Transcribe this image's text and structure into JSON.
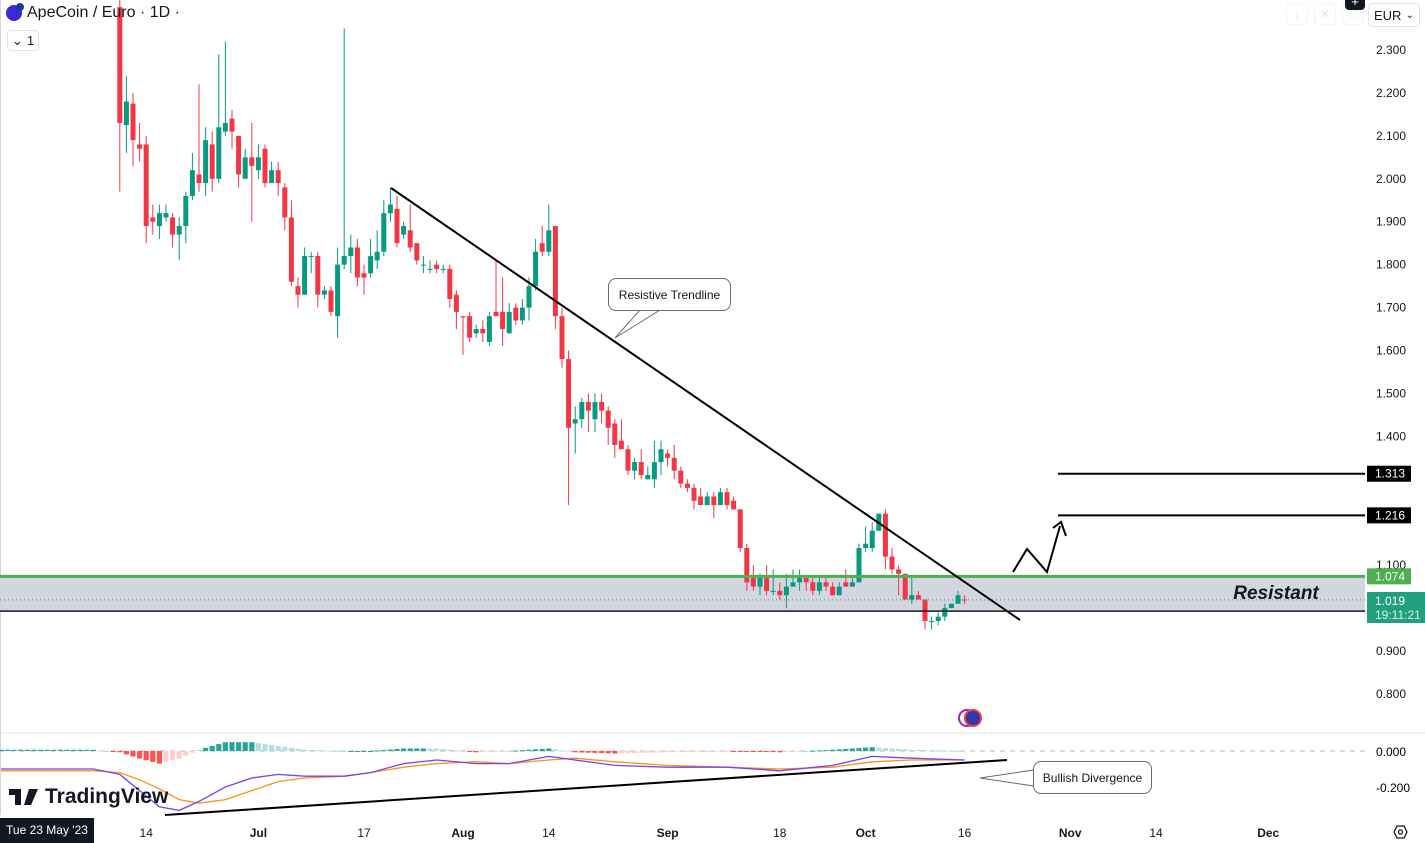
{
  "header": {
    "symbol_title": "ApeCoin / Euro · 1D ·",
    "collapse_label": "1",
    "currency": "EUR"
  },
  "crosshair_date": "Tue 23 May '23",
  "brand": "TradingView",
  "colors": {
    "up": "#089981",
    "down": "#f23645",
    "macd": "#7b3ff2",
    "signal": "#f7931a",
    "resistance": "#4caf50",
    "zone": "#d1d4dc",
    "last_price": "#22a07e"
  },
  "annotations": {
    "trendline_label": "Resistive Trendline",
    "divergence_label": "Bullish Divergence",
    "zone_label": "Resistant",
    "level_1": "1.313",
    "level_2": "1.216",
    "resistance_level": "1.074",
    "last_price": "1.019",
    "countdown": "19:11:21"
  },
  "chart_data": [
    {
      "type": "candlestick",
      "title": "ApeCoin / Euro · 1D",
      "ylim": [
        0.75,
        2.4
      ],
      "y_ticks": [
        "2.300",
        "2.200",
        "2.100",
        "2.000",
        "1.900",
        "1.800",
        "1.700",
        "1.600",
        "1.500",
        "1.400",
        "1.100",
        "0.900",
        "0.800"
      ],
      "x_ticks": [
        {
          "label": "14",
          "date": "2023-06-14",
          "bold": false
        },
        {
          "label": "Jul",
          "date": "2023-07-01",
          "bold": true
        },
        {
          "label": "17",
          "date": "2023-07-17",
          "bold": false
        },
        {
          "label": "Aug",
          "date": "2023-08-01",
          "bold": true
        },
        {
          "label": "14",
          "date": "2023-08-14",
          "bold": false
        },
        {
          "label": "Sep",
          "date": "2023-09-01",
          "bold": true
        },
        {
          "label": "18",
          "date": "2023-09-18",
          "bold": false
        },
        {
          "label": "Oct",
          "date": "2023-10-01",
          "bold": true
        },
        {
          "label": "16",
          "date": "2023-10-16",
          "bold": false
        },
        {
          "label": "Nov",
          "date": "2023-11-01",
          "bold": true
        },
        {
          "label": "14",
          "date": "2023-11-14",
          "bold": false
        },
        {
          "label": "Dec",
          "date": "2023-12-01",
          "bold": true
        }
      ],
      "candles_columns": [
        "date",
        "open",
        "high",
        "low",
        "close"
      ],
      "candles": [
        [
          "2023-06-10",
          2.4,
          2.45,
          1.97,
          2.13
        ],
        [
          "2023-06-11",
          2.125,
          2.24,
          2.06,
          2.18
        ],
        [
          "2023-06-12",
          2.175,
          2.2,
          2.03,
          2.09
        ],
        [
          "2023-06-13",
          2.08,
          2.13,
          2.04,
          2.07
        ],
        [
          "2023-06-14",
          2.08,
          2.1,
          1.85,
          1.89
        ],
        [
          "2023-06-15",
          1.91,
          1.94,
          1.87,
          1.9
        ],
        [
          "2023-06-16",
          1.89,
          1.94,
          1.86,
          1.92
        ],
        [
          "2023-06-17",
          1.91,
          1.94,
          1.9,
          1.92
        ],
        [
          "2023-06-18",
          1.91,
          1.92,
          1.84,
          1.87
        ],
        [
          "2023-06-19",
          1.87,
          1.91,
          1.81,
          1.89
        ],
        [
          "2023-06-20",
          1.89,
          1.97,
          1.85,
          1.96
        ],
        [
          "2023-06-21",
          1.96,
          2.06,
          1.95,
          2.02
        ],
        [
          "2023-06-22",
          2.01,
          2.22,
          1.97,
          1.99
        ],
        [
          "2023-06-23",
          1.99,
          2.12,
          1.96,
          2.09
        ],
        [
          "2023-06-24",
          2.08,
          2.11,
          1.97,
          2.0
        ],
        [
          "2023-06-25",
          2.0,
          2.29,
          1.99,
          2.12
        ],
        [
          "2023-06-26",
          2.11,
          2.32,
          2.1,
          2.13
        ],
        [
          "2023-06-27",
          2.14,
          2.16,
          2.07,
          2.11
        ],
        [
          "2023-06-28",
          2.1,
          2.1,
          1.98,
          2.01
        ],
        [
          "2023-06-29",
          2.0,
          2.07,
          2.0,
          2.05
        ],
        [
          "2023-06-30",
          2.05,
          2.13,
          1.9,
          2.03
        ],
        [
          "2023-07-01",
          2.02,
          2.08,
          2.0,
          2.05
        ],
        [
          "2023-07-02",
          2.07,
          2.08,
          1.98,
          1.99
        ],
        [
          "2023-07-03",
          1.99,
          2.04,
          1.99,
          2.02
        ],
        [
          "2023-07-04",
          2.02,
          2.04,
          1.96,
          1.99
        ],
        [
          "2023-07-05",
          1.98,
          1.99,
          1.88,
          1.91
        ],
        [
          "2023-07-06",
          1.91,
          1.95,
          1.75,
          1.76
        ],
        [
          "2023-07-07",
          1.75,
          1.77,
          1.7,
          1.73
        ],
        [
          "2023-07-08",
          1.73,
          1.84,
          1.73,
          1.82
        ],
        [
          "2023-07-09",
          1.82,
          1.83,
          1.78,
          1.82
        ],
        [
          "2023-07-10",
          1.82,
          1.83,
          1.7,
          1.73
        ],
        [
          "2023-07-11",
          1.73,
          1.75,
          1.72,
          1.74
        ],
        [
          "2023-07-12",
          1.74,
          1.75,
          1.68,
          1.69
        ],
        [
          "2023-07-13",
          1.68,
          1.84,
          1.63,
          1.8
        ],
        [
          "2023-07-14",
          1.8,
          2.35,
          1.79,
          1.82
        ],
        [
          "2023-07-15",
          1.82,
          1.87,
          1.78,
          1.84
        ],
        [
          "2023-07-16",
          1.84,
          1.86,
          1.75,
          1.77
        ],
        [
          "2023-07-17",
          1.78,
          1.8,
          1.73,
          1.77
        ],
        [
          "2023-07-18",
          1.78,
          1.86,
          1.77,
          1.82
        ],
        [
          "2023-07-19",
          1.81,
          1.88,
          1.79,
          1.83
        ],
        [
          "2023-07-20",
          1.83,
          1.95,
          1.82,
          1.92
        ],
        [
          "2023-07-21",
          1.92,
          1.98,
          1.9,
          1.94
        ],
        [
          "2023-07-22",
          1.93,
          1.96,
          1.84,
          1.85
        ],
        [
          "2023-07-23",
          1.87,
          1.9,
          1.86,
          1.89
        ],
        [
          "2023-07-24",
          1.88,
          1.94,
          1.83,
          1.84
        ],
        [
          "2023-07-25",
          1.85,
          1.85,
          1.8,
          1.81
        ],
        [
          "2023-07-26",
          1.8,
          1.82,
          1.78,
          1.8
        ],
        [
          "2023-07-27",
          1.79,
          1.81,
          1.78,
          1.79
        ],
        [
          "2023-07-28",
          1.8,
          1.81,
          1.78,
          1.79
        ],
        [
          "2023-07-29",
          1.79,
          1.8,
          1.78,
          1.79
        ],
        [
          "2023-07-30",
          1.79,
          1.8,
          1.7,
          1.72
        ],
        [
          "2023-07-31",
          1.73,
          1.74,
          1.65,
          1.69
        ],
        [
          "2023-08-01",
          1.68,
          1.68,
          1.59,
          1.677
        ],
        [
          "2023-08-02",
          1.68,
          1.69,
          1.62,
          1.63
        ],
        [
          "2023-08-03",
          1.64,
          1.66,
          1.63,
          1.65
        ],
        [
          "2023-08-04",
          1.65,
          1.67,
          1.62,
          1.64
        ],
        [
          "2023-08-05",
          1.62,
          1.69,
          1.61,
          1.68
        ],
        [
          "2023-08-06",
          1.69,
          1.81,
          1.68,
          1.68
        ],
        [
          "2023-08-07",
          1.69,
          1.77,
          1.61,
          1.65
        ],
        [
          "2023-08-08",
          1.64,
          1.71,
          1.64,
          1.69
        ],
        [
          "2023-08-09",
          1.7,
          1.71,
          1.66,
          1.67
        ],
        [
          "2023-08-10",
          1.67,
          1.72,
          1.66,
          1.7
        ],
        [
          "2023-08-11",
          1.7,
          1.77,
          1.67,
          1.75
        ],
        [
          "2023-08-12",
          1.75,
          1.86,
          1.74,
          1.83
        ],
        [
          "2023-08-13",
          1.85,
          1.89,
          1.82,
          1.83
        ],
        [
          "2023-08-14",
          1.83,
          1.94,
          1.82,
          1.88
        ],
        [
          "2023-08-15",
          1.89,
          1.89,
          1.65,
          1.68
        ],
        [
          "2023-08-16",
          1.68,
          1.7,
          1.56,
          1.58
        ],
        [
          "2023-08-17",
          1.58,
          1.6,
          1.24,
          1.42
        ],
        [
          "2023-08-18",
          1.43,
          1.47,
          1.36,
          1.44
        ],
        [
          "2023-08-19",
          1.44,
          1.49,
          1.42,
          1.48
        ],
        [
          "2023-08-20",
          1.48,
          1.5,
          1.41,
          1.46
        ],
        [
          "2023-08-21",
          1.44,
          1.5,
          1.41,
          1.48
        ],
        [
          "2023-08-22",
          1.48,
          1.5,
          1.43,
          1.46
        ],
        [
          "2023-08-23",
          1.46,
          1.47,
          1.38,
          1.42
        ],
        [
          "2023-08-24",
          1.43,
          1.44,
          1.35,
          1.38
        ],
        [
          "2023-08-25",
          1.39,
          1.44,
          1.37,
          1.37
        ],
        [
          "2023-08-26",
          1.37,
          1.38,
          1.31,
          1.32
        ],
        [
          "2023-08-27",
          1.32,
          1.35,
          1.3,
          1.34
        ],
        [
          "2023-08-28",
          1.34,
          1.37,
          1.3,
          1.31
        ],
        [
          "2023-08-29",
          1.3,
          1.33,
          1.3,
          1.31
        ],
        [
          "2023-08-30",
          1.3,
          1.39,
          1.28,
          1.34
        ],
        [
          "2023-08-31",
          1.34,
          1.39,
          1.31,
          1.37
        ],
        [
          "2023-09-01",
          1.36,
          1.37,
          1.33,
          1.35
        ],
        [
          "2023-09-02",
          1.35,
          1.38,
          1.3,
          1.32
        ],
        [
          "2023-09-03",
          1.32,
          1.33,
          1.28,
          1.29
        ],
        [
          "2023-09-04",
          1.29,
          1.3,
          1.27,
          1.28
        ],
        [
          "2023-09-05",
          1.28,
          1.29,
          1.23,
          1.25
        ],
        [
          "2023-09-06",
          1.26,
          1.28,
          1.24,
          1.24
        ],
        [
          "2023-09-07",
          1.24,
          1.27,
          1.24,
          1.26
        ],
        [
          "2023-09-08",
          1.26,
          1.27,
          1.21,
          1.24
        ],
        [
          "2023-09-09",
          1.24,
          1.28,
          1.24,
          1.27
        ],
        [
          "2023-09-10",
          1.27,
          1.28,
          1.23,
          1.24
        ],
        [
          "2023-09-11",
          1.25,
          1.26,
          1.23,
          1.23
        ],
        [
          "2023-09-12",
          1.23,
          1.23,
          1.13,
          1.14
        ],
        [
          "2023-09-13",
          1.14,
          1.15,
          1.04,
          1.06
        ],
        [
          "2023-09-14",
          1.07,
          1.1,
          1.04,
          1.05
        ],
        [
          "2023-09-15",
          1.05,
          1.08,
          1.03,
          1.07
        ],
        [
          "2023-09-16",
          1.07,
          1.1,
          1.03,
          1.04
        ],
        [
          "2023-09-17",
          1.04,
          1.09,
          1.03,
          1.04
        ],
        [
          "2023-09-18",
          1.04,
          1.06,
          1.02,
          1.03
        ],
        [
          "2023-09-19",
          1.03,
          1.08,
          1.0,
          1.05
        ],
        [
          "2023-09-20",
          1.05,
          1.09,
          1.05,
          1.06
        ],
        [
          "2023-09-21",
          1.06,
          1.09,
          1.04,
          1.07
        ],
        [
          "2023-09-22",
          1.07,
          1.07,
          1.04,
          1.06
        ],
        [
          "2023-09-23",
          1.06,
          1.07,
          1.03,
          1.04
        ],
        [
          "2023-09-24",
          1.04,
          1.07,
          1.03,
          1.06
        ],
        [
          "2023-09-25",
          1.06,
          1.07,
          1.04,
          1.05
        ],
        [
          "2023-09-26",
          1.05,
          1.06,
          1.03,
          1.03
        ],
        [
          "2023-09-27",
          1.03,
          1.06,
          1.03,
          1.05
        ],
        [
          "2023-09-28",
          1.06,
          1.09,
          1.05,
          1.05
        ],
        [
          "2023-09-29",
          1.05,
          1.07,
          1.05,
          1.06
        ],
        [
          "2023-09-30",
          1.06,
          1.15,
          1.06,
          1.14
        ],
        [
          "2023-10-01",
          1.14,
          1.19,
          1.13,
          1.15
        ],
        [
          "2023-10-02",
          1.14,
          1.2,
          1.13,
          1.18
        ],
        [
          "2023-10-03",
          1.18,
          1.22,
          1.18,
          1.22
        ],
        [
          "2023-10-04",
          1.22,
          1.23,
          1.09,
          1.12
        ],
        [
          "2023-10-05",
          1.12,
          1.14,
          1.08,
          1.09
        ],
        [
          "2023-10-06",
          1.09,
          1.1,
          1.03,
          1.08
        ],
        [
          "2023-10-07",
          1.08,
          1.08,
          1.02,
          1.02
        ],
        [
          "2023-10-08",
          1.02,
          1.07,
          1.01,
          1.03
        ],
        [
          "2023-10-09",
          1.03,
          1.04,
          1.02,
          1.02
        ],
        [
          "2023-10-10",
          1.02,
          1.02,
          0.95,
          0.97
        ],
        [
          "2023-10-11",
          0.97,
          0.98,
          0.95,
          0.97
        ],
        [
          "2023-10-12",
          0.97,
          0.99,
          0.96,
          0.98
        ],
        [
          "2023-10-13",
          0.98,
          1.01,
          0.97,
          1.0
        ],
        [
          "2023-10-14",
          1.0,
          1.01,
          1.0,
          1.01
        ],
        [
          "2023-10-15",
          1.01,
          1.04,
          1.01,
          1.03
        ],
        [
          "2023-10-16",
          1.02,
          1.03,
          1.01,
          1.019
        ]
      ]
    },
    {
      "type": "line",
      "indicator": "MACD",
      "y_ticks": [
        "0.000",
        "-0.200"
      ],
      "columns": [
        "date",
        "macd",
        "signal"
      ],
      "points": [
        [
          "2023-05-23",
          -0.1,
          -0.11
        ],
        [
          "2023-05-30",
          -0.1,
          -0.11
        ],
        [
          "2023-06-06",
          -0.1,
          -0.11
        ],
        [
          "2023-06-10",
          -0.13,
          -0.12
        ],
        [
          "2023-06-13",
          -0.22,
          -0.16
        ],
        [
          "2023-06-16",
          -0.31,
          -0.21
        ],
        [
          "2023-06-19",
          -0.33,
          -0.27
        ],
        [
          "2023-06-22",
          -0.28,
          -0.29
        ],
        [
          "2023-06-26",
          -0.2,
          -0.27
        ],
        [
          "2023-06-30",
          -0.15,
          -0.22
        ],
        [
          "2023-07-04",
          -0.13,
          -0.17
        ],
        [
          "2023-07-08",
          -0.14,
          -0.15
        ],
        [
          "2023-07-14",
          -0.14,
          -0.14
        ],
        [
          "2023-07-18",
          -0.12,
          -0.12
        ],
        [
          "2023-07-23",
          -0.07,
          -0.09
        ],
        [
          "2023-07-28",
          -0.05,
          -0.07
        ],
        [
          "2023-08-03",
          -0.07,
          -0.06
        ],
        [
          "2023-08-08",
          -0.07,
          -0.07
        ],
        [
          "2023-08-14",
          -0.03,
          -0.05
        ],
        [
          "2023-08-18",
          -0.05,
          -0.04
        ],
        [
          "2023-08-24",
          -0.08,
          -0.06
        ],
        [
          "2023-09-01",
          -0.09,
          -0.08
        ],
        [
          "2023-09-10",
          -0.09,
          -0.09
        ],
        [
          "2023-09-18",
          -0.11,
          -0.1
        ],
        [
          "2023-09-26",
          -0.08,
          -0.09
        ],
        [
          "2023-10-02",
          -0.03,
          -0.06
        ],
        [
          "2023-10-08",
          -0.04,
          -0.05
        ],
        [
          "2023-10-16",
          -0.05,
          -0.05
        ]
      ]
    }
  ]
}
